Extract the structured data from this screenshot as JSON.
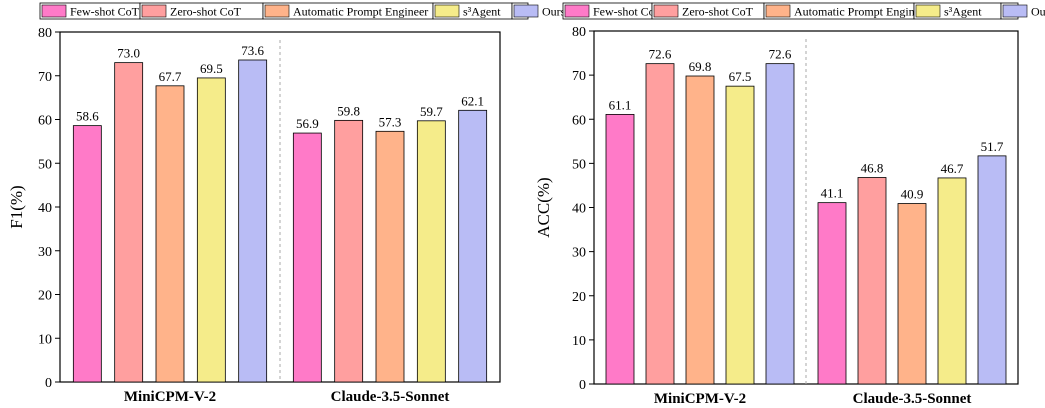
{
  "chart_data": [
    {
      "type": "bar",
      "ylabel": "F1(%)",
      "ylim": [
        0,
        80
      ],
      "yticks": [
        0,
        10,
        20,
        30,
        40,
        50,
        60,
        70,
        80
      ],
      "grid": false,
      "legend_position": "top",
      "categories": [
        "MiniCPM-V-2",
        "Claude-3.5-Sonnet"
      ],
      "series": [
        {
          "name": "Few-shot CoT",
          "color": "#ff7ac8",
          "values": [
            58.6,
            56.9
          ],
          "labels": [
            "58.6",
            "56.9"
          ]
        },
        {
          "name": "Zero-shot CoT",
          "color": "#ff9f9f",
          "values": [
            73.0,
            59.8
          ],
          "labels": [
            "73.0",
            "59.8"
          ]
        },
        {
          "name": "Automatic Prompt Engineer",
          "color": "#ffb38a",
          "values": [
            67.7,
            57.3
          ],
          "labels": [
            "67.7",
            "57.3"
          ]
        },
        {
          "name": "s³Agent",
          "color": "#f5ec8a",
          "values": [
            69.5,
            59.7
          ],
          "labels": [
            "69.5",
            "59.7"
          ]
        },
        {
          "name": "Ours",
          "color": "#b9bcf5",
          "values": [
            73.6,
            62.1
          ],
          "labels": [
            "73.6",
            "62.1"
          ]
        }
      ]
    },
    {
      "type": "bar",
      "ylabel": "ACC(%)",
      "ylim": [
        0,
        80
      ],
      "yticks": [
        0,
        10,
        20,
        30,
        40,
        50,
        60,
        70,
        80
      ],
      "grid": false,
      "legend_position": "top",
      "categories": [
        "MiniCPM-V-2",
        "Claude-3.5-Sonnet"
      ],
      "series": [
        {
          "name": "Few-shot CoT",
          "color": "#ff7ac8",
          "values": [
            61.1,
            41.1
          ],
          "labels": [
            "61.1",
            "41.1"
          ]
        },
        {
          "name": "Zero-shot CoT",
          "color": "#ff9f9f",
          "values": [
            72.6,
            46.8
          ],
          "labels": [
            "72.6",
            "46.8"
          ]
        },
        {
          "name": "Automatic Prompt Engineer",
          "color": "#ffb38a",
          "values": [
            69.8,
            40.9
          ],
          "labels": [
            "69.8",
            "40.9"
          ]
        },
        {
          "name": "s³Agent",
          "color": "#f5ec8a",
          "values": [
            67.5,
            46.7
          ],
          "labels": [
            "67.5",
            "46.7"
          ]
        },
        {
          "name": "Ours",
          "color": "#b9bcf5",
          "values": [
            72.6,
            51.7
          ],
          "labels": [
            "72.6",
            "51.7"
          ]
        }
      ]
    }
  ]
}
